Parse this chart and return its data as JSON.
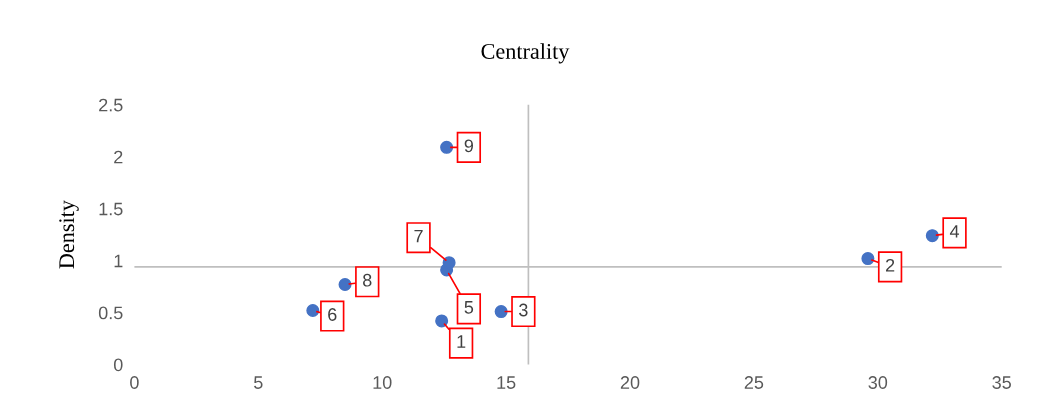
{
  "chart_data": {
    "type": "scatter",
    "title": "Centrality",
    "ylabel": "Density",
    "x": [
      12.4,
      29.6,
      14.8,
      32.2,
      12.6,
      7.2,
      12.7,
      8.5,
      12.6
    ],
    "series": [
      {
        "color": "#4472c4",
        "values": [
          0.42,
          1.02,
          0.51,
          1.24,
          0.91,
          0.52,
          0.98,
          0.77,
          2.09
        ]
      }
    ],
    "xlim": [
      0,
      35
    ],
    "xticks": [
      0,
      5,
      10,
      15,
      20,
      25,
      30,
      35
    ],
    "ylim": [
      0,
      2.5
    ],
    "yticks": [
      0,
      0.5,
      1,
      1.5,
      2,
      2.5
    ],
    "ref_lines": [
      {
        "axis": "y",
        "value": 0.94,
        "color": "#bfbfbf"
      },
      {
        "axis": "x",
        "value": 15.9,
        "color": "#bfbfbf"
      }
    ],
    "annotations": [
      {
        "text": "1",
        "x": 12.4,
        "y": 0.42
      },
      {
        "text": "2",
        "x": 29.6,
        "y": 1.02
      },
      {
        "text": "3",
        "x": 14.8,
        "y": 0.51
      },
      {
        "text": "4",
        "x": 32.2,
        "y": 1.24
      },
      {
        "text": "5",
        "x": 12.6,
        "y": 0.91
      },
      {
        "text": "6",
        "x": 7.2,
        "y": 0.52
      },
      {
        "text": "7",
        "x": 12.7,
        "y": 0.98
      },
      {
        "text": "8",
        "x": 8.5,
        "y": 0.77
      },
      {
        "text": "9",
        "x": 12.6,
        "y": 2.09
      }
    ],
    "marker": "circle"
  }
}
